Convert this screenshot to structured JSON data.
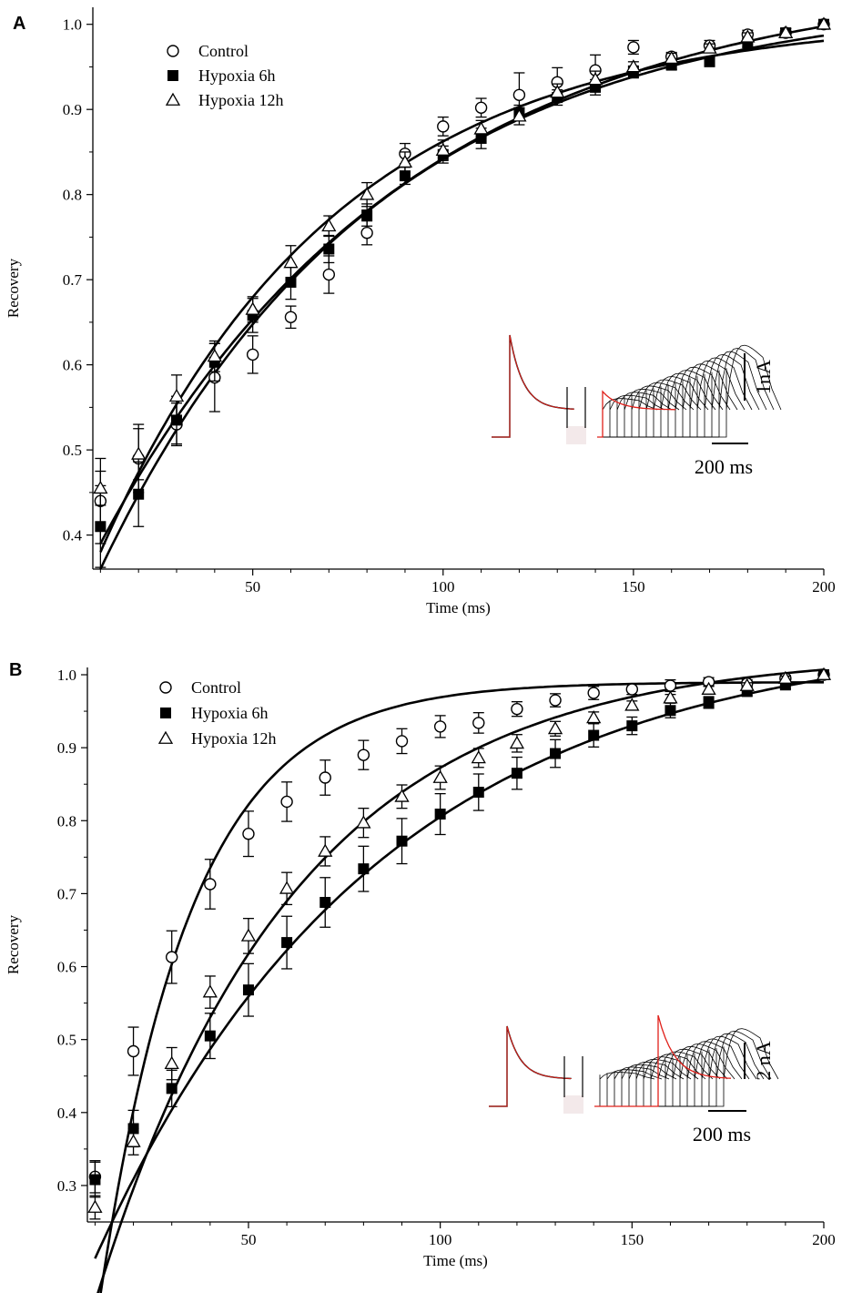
{
  "chart_data": [
    {
      "type": "scatter",
      "panel_label": "A",
      "xlabel": "Time (ms)",
      "ylabel": "Recovery",
      "xlim": [
        8,
        200
      ],
      "ylim": [
        0.36,
        1.02
      ],
      "xticks": [
        50,
        100,
        150,
        200
      ],
      "yticks": [
        0.4,
        0.5,
        0.6,
        0.7,
        0.8,
        0.9,
        1.0
      ],
      "ytick_labels": [
        "0.4",
        "0.5",
        "0.6",
        "0.7",
        "0.8",
        "0.9",
        "1.0"
      ],
      "legend_position": "top-left",
      "x": [
        10,
        20,
        30,
        40,
        50,
        60,
        70,
        80,
        90,
        100,
        110,
        120,
        130,
        140,
        150,
        160,
        170,
        180,
        190,
        200
      ],
      "series": [
        {
          "name": "Control",
          "marker": "circle-open",
          "values": [
            0.44,
            0.49,
            0.53,
            0.585,
            0.612,
            0.656,
            0.706,
            0.755,
            0.848,
            0.88,
            0.902,
            0.917,
            0.932,
            0.946,
            0.973,
            0.962,
            0.975,
            0.988,
            0.99,
            1.0
          ],
          "errors": [
            0.05,
            0.04,
            0.025,
            0.04,
            0.022,
            0.013,
            0.022,
            0.014,
            0.012,
            0.011,
            0.011,
            0.026,
            0.017,
            0.018,
            0.008,
            0.005,
            0.006,
            0.005,
            0.005,
            0.0
          ],
          "fit": [
            0.38,
            1.01,
            62
          ]
        },
        {
          "name": "Hypoxia 6h",
          "marker": "square-filled",
          "values": [
            0.41,
            0.448,
            0.535,
            0.603,
            0.658,
            0.697,
            0.736,
            0.776,
            0.822,
            0.847,
            0.866,
            0.896,
            0.914,
            0.926,
            0.944,
            0.952,
            0.956,
            0.978,
            0.99,
            1.0
          ],
          "errors": [
            0.048,
            0.038,
            0.028,
            0.022,
            0.02,
            0.02,
            0.016,
            0.013,
            0.01,
            0.01,
            0.012,
            0.009,
            0.009,
            0.009,
            0.007,
            0.005,
            0.005,
            0.005,
            0.005,
            0.0
          ],
          "fit": [
            0.36,
            1.035,
            72
          ]
        },
        {
          "name": "Hypoxia 12h",
          "marker": "triangle-open",
          "values": [
            0.455,
            0.495,
            0.563,
            0.61,
            0.665,
            0.72,
            0.763,
            0.8,
            0.838,
            0.852,
            0.877,
            0.892,
            0.92,
            0.935,
            0.95,
            0.96,
            0.972,
            0.985,
            0.99,
            1.0
          ],
          "errors": [
            0.02,
            0.03,
            0.025,
            0.018,
            0.015,
            0.02,
            0.012,
            0.014,
            0.012,
            0.012,
            0.01,
            0.01,
            0.01,
            0.01,
            0.006,
            0.006,
            0.005,
            0.005,
            0.005,
            0.0
          ],
          "fit": [
            0.39,
            1.06,
            80
          ]
        }
      ],
      "inset": {
        "scale_current_label": "1nA",
        "scale_time_label": "200 ms"
      }
    },
    {
      "type": "scatter",
      "panel_label": "B",
      "xlabel": "Time (ms)",
      "ylabel": "Recovery",
      "xlim": [
        8,
        200
      ],
      "ylim": [
        0.25,
        1.01
      ],
      "xticks": [
        50,
        100,
        150,
        200
      ],
      "yticks": [
        0.3,
        0.4,
        0.5,
        0.6,
        0.7,
        0.8,
        0.9,
        1.0
      ],
      "ytick_labels": [
        "0.3",
        "0.4",
        "0.5",
        "0.6",
        "0.7",
        "0.8",
        "0.9",
        "1.0"
      ],
      "legend_position": "top-left",
      "x": [
        10,
        20,
        30,
        40,
        50,
        60,
        70,
        80,
        90,
        100,
        110,
        120,
        130,
        140,
        150,
        160,
        170,
        180,
        190,
        200
      ],
      "series": [
        {
          "name": "Control",
          "marker": "circle-open",
          "values": [
            0.312,
            0.484,
            0.613,
            0.713,
            0.782,
            0.826,
            0.859,
            0.89,
            0.909,
            0.929,
            0.934,
            0.953,
            0.965,
            0.975,
            0.98,
            0.985,
            0.99,
            0.988,
            0.995,
            1.0
          ],
          "errors": [
            0.022,
            0.033,
            0.036,
            0.034,
            0.031,
            0.027,
            0.024,
            0.02,
            0.017,
            0.015,
            0.014,
            0.01,
            0.009,
            0.009,
            0.007,
            0.008,
            0.006,
            0.005,
            0.004,
            0.0
          ],
          "fit": [
            0.1,
            0.99,
            24
          ]
        },
        {
          "name": "Hypoxia 6h",
          "marker": "square-filled",
          "values": [
            0.308,
            0.378,
            0.433,
            0.505,
            0.568,
            0.633,
            0.688,
            0.734,
            0.772,
            0.809,
            0.839,
            0.865,
            0.892,
            0.917,
            0.93,
            0.951,
            0.962,
            0.977,
            0.986,
            1.0
          ],
          "errors": [
            0.024,
            0.025,
            0.025,
            0.031,
            0.036,
            0.036,
            0.034,
            0.031,
            0.031,
            0.028,
            0.025,
            0.022,
            0.019,
            0.016,
            0.012,
            0.01,
            0.008,
            0.006,
            0.005,
            0.0
          ],
          "fit": [
            0.2,
            1.06,
            74
          ]
        },
        {
          "name": "Hypoxia 12h",
          "marker": "triangle-open",
          "values": [
            0.27,
            0.36,
            0.467,
            0.565,
            0.642,
            0.707,
            0.758,
            0.797,
            0.833,
            0.859,
            0.886,
            0.906,
            0.926,
            0.941,
            0.958,
            0.968,
            0.98,
            0.985,
            0.995,
            1.0
          ],
          "errors": [
            0.016,
            0.018,
            0.022,
            0.022,
            0.024,
            0.022,
            0.02,
            0.02,
            0.016,
            0.016,
            0.013,
            0.012,
            0.01,
            0.008,
            0.006,
            0.005,
            0.005,
            0.004,
            0.003,
            0.0
          ],
          "fit": [
            0.14,
            1.03,
            52
          ]
        }
      ],
      "inset": {
        "scale_current_label": "2 nA",
        "scale_time_label": "200 ms"
      }
    }
  ]
}
